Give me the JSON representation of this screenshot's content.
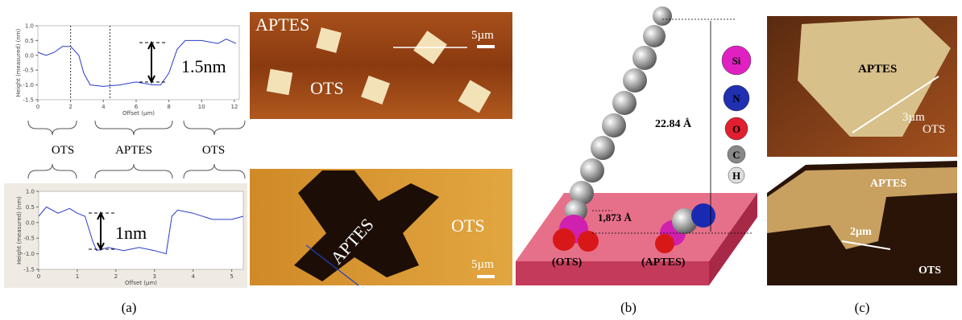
{
  "profile_top": {
    "y_label": "Height (measured) (nm)",
    "x_label": "Offset (µm)",
    "annotation": "1.5nm",
    "xlim": [
      0,
      12.3
    ],
    "ylim": [
      -1.5,
      1.0
    ],
    "xticks": [
      0,
      2,
      4,
      6,
      8,
      10,
      12
    ],
    "yticks": [
      {
        "value": -1.5,
        "label": "-1.5"
      },
      {
        "value": -1.0,
        "label": "-1.0"
      },
      {
        "value": -0.5,
        "label": "-0.5"
      },
      {
        "value": 0,
        "label": "0.0"
      },
      {
        "value": 0.5,
        "label": "0.5"
      },
      {
        "value": 1.0,
        "label": "1.0"
      }
    ],
    "x": [
      0,
      0.5,
      1,
      1.5,
      2,
      2.5,
      2.8,
      3.2,
      4,
      5,
      6,
      7,
      7.5,
      8,
      8.5,
      9,
      10,
      11,
      11.5,
      12.1
    ],
    "y": [
      0.1,
      0.0,
      0.1,
      0.3,
      0.3,
      0.0,
      -0.6,
      -1.0,
      -1.05,
      -1.0,
      -0.9,
      -1.0,
      -1.0,
      -0.6,
      0.2,
      0.5,
      0.5,
      0.4,
      0.55,
      0.4
    ]
  },
  "braces": [
    "OTS",
    "APTES",
    "OTS"
  ],
  "profile_bottom": {
    "y_label": "Height (measured) (nm)",
    "x_label": "Offset (µm)",
    "annotation": "1nm",
    "xlim": [
      0,
      5.3
    ],
    "ylim": [
      -1.5,
      1.0
    ],
    "xticks": [
      0,
      1,
      2,
      3,
      4,
      5
    ],
    "yticks": [
      {
        "value": -1.5,
        "label": "-1.5"
      },
      {
        "value": -1.0,
        "label": "-1.0"
      },
      {
        "value": -0.5,
        "label": "-0.5"
      },
      {
        "value": 0,
        "label": "0.0"
      },
      {
        "value": 0.5,
        "label": "0.5"
      },
      {
        "value": 1.0,
        "label": "1.0"
      }
    ],
    "x": [
      0,
      0.2,
      0.5,
      0.8,
      1.0,
      1.2,
      1.4,
      1.5,
      1.8,
      2.2,
      2.6,
      3.0,
      3.3,
      3.45,
      3.6,
      4.0,
      4.5,
      5.0,
      5.3
    ],
    "y": [
      0.2,
      0.5,
      0.3,
      0.45,
      0.3,
      0.2,
      -0.6,
      -0.9,
      -0.8,
      -0.9,
      -0.8,
      -0.9,
      -1.0,
      0.2,
      0.4,
      0.3,
      0.1,
      0.1,
      0.2
    ]
  },
  "afm_top": {
    "aptes": "APTES",
    "ots": "OTS",
    "scale": "5µm"
  },
  "afm_bottom": {
    "aptes": "APTES",
    "ots": "OTS",
    "scale": "5µm"
  },
  "molecule": {
    "height": "22.84 Å",
    "gap": "1,873 Å",
    "left": "(OTS)",
    "right": "(APTES)",
    "legend": [
      "Si",
      "N",
      "O",
      "C",
      "H"
    ]
  },
  "afm3d_top": {
    "aptes": "APTES",
    "scale": "3µm",
    "ots": "OTS"
  },
  "afm3d_bottom": {
    "aptes": "APTES",
    "scale": "2µm",
    "ots": "OTS"
  },
  "captions": [
    "(a)",
    "(b)",
    "(c)"
  ]
}
